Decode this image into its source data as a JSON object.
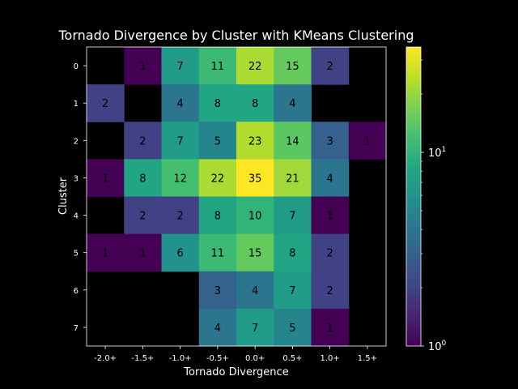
{
  "chart_data": {
    "type": "heatmap",
    "title": "Tornado Divergence by Cluster with KMeans Clustering",
    "xlabel": "Tornado Divergence",
    "ylabel": "Cluster",
    "x_categories": [
      "-2.0+",
      "-1.5+",
      "-1.0+",
      "-0.5+",
      "0.0+",
      "0.5+",
      "1.0+",
      "1.5+"
    ],
    "y_categories": [
      "0",
      "1",
      "2",
      "3",
      "4",
      "5",
      "6",
      "7"
    ],
    "values": [
      [
        null,
        1,
        7,
        11,
        22,
        15,
        2,
        null
      ],
      [
        2,
        null,
        4,
        8,
        8,
        4,
        null,
        null
      ],
      [
        null,
        2,
        7,
        5,
        23,
        14,
        3,
        1
      ],
      [
        1,
        8,
        12,
        22,
        35,
        21,
        4,
        null
      ],
      [
        null,
        2,
        2,
        8,
        10,
        7,
        1,
        null
      ],
      [
        1,
        1,
        6,
        11,
        15,
        8,
        2,
        null
      ],
      [
        null,
        null,
        null,
        3,
        4,
        7,
        2,
        null
      ],
      [
        null,
        null,
        null,
        4,
        7,
        5,
        1,
        null
      ]
    ],
    "colorscale": "viridis",
    "color_scale_type": "log",
    "color_range": [
      1,
      35
    ],
    "colorbar": {
      "ticks": [
        {
          "value": 1,
          "base": "10",
          "exp": "0"
        },
        {
          "value": 10,
          "base": "10",
          "exp": "1"
        }
      ]
    },
    "missing_color": "#000000"
  }
}
